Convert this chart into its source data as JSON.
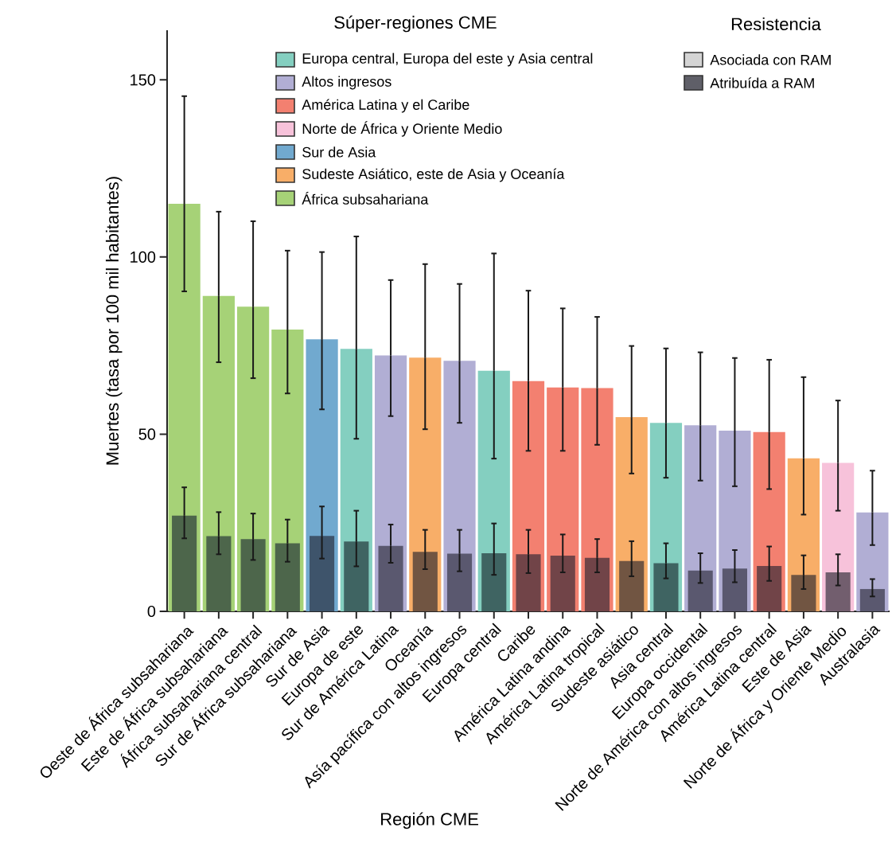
{
  "chart_data": {
    "type": "bar",
    "xlabel": "Región CME",
    "ylabel": "Muertes (tasa por 100 mil habitantes)",
    "legend_title": "Súper-regiones CME",
    "annotations": [
      "Resistencia"
    ],
    "categories": [
      "Oeste de África subsahariana",
      "Este de África subsahariana",
      "África subsahariana central",
      "Sur de África subsahariana",
      "Sur de Asia",
      "Europa de este",
      "Sur de América Latina",
      "Oceanía",
      "Asía pacífica con altos ingresos",
      "Europa central",
      "Caribe",
      "América Latina andina",
      "América Latina tropical",
      "Sudeste asiático",
      "Asia central",
      "Europa occidental",
      "Norte de América con altos ingresos",
      "América Latina central",
      "Este de Asia",
      "Norte de África y Oriente Medio",
      "Australasia"
    ],
    "ylim": [
      0,
      164
    ],
    "yticks": [
      0,
      50,
      100,
      150
    ],
    "legend": "top",
    "series": [
      {
        "name": "Europa central, Europa del este y Asia central",
        "color": "#84cfc0",
        "values": [
          null,
          null,
          null,
          null,
          null,
          74.1,
          null,
          null,
          null,
          67.9,
          null,
          null,
          null,
          null,
          53.2,
          null,
          null,
          null,
          null,
          null,
          null
        ],
        "errors": [
          null,
          null,
          null,
          null,
          null,
          [
            48.7,
            105.8
          ],
          null,
          null,
          null,
          [
            43.1,
            101.0
          ],
          null,
          null,
          null,
          null,
          [
            37.7,
            74.2
          ],
          null,
          null,
          null,
          null,
          null,
          null
        ]
      },
      {
        "name": "Altos ingresos",
        "color": "#b1aed4",
        "values": [
          null,
          null,
          null,
          null,
          null,
          null,
          72.2,
          null,
          70.7,
          null,
          null,
          null,
          null,
          null,
          null,
          52.5,
          51.0,
          null,
          null,
          null,
          27.9
        ],
        "errors": [
          null,
          null,
          null,
          null,
          null,
          null,
          [
            55.1,
            93.5
          ],
          null,
          [
            53.2,
            92.4
          ],
          null,
          null,
          null,
          null,
          null,
          null,
          [
            36.9,
            73.1
          ],
          [
            35.3,
            71.5
          ],
          null,
          null,
          null,
          [
            18.7,
            39.7
          ]
        ]
      },
      {
        "name": "América Latina y el Caribe",
        "color": "#f38070",
        "values": [
          null,
          null,
          null,
          null,
          null,
          null,
          null,
          null,
          null,
          null,
          65.0,
          63.2,
          63.0,
          null,
          null,
          null,
          null,
          50.6,
          null,
          null,
          null
        ],
        "errors": [
          null,
          null,
          null,
          null,
          null,
          null,
          null,
          null,
          null,
          null,
          [
            45.3,
            90.5
          ],
          [
            45.3,
            85.5
          ],
          [
            47.0,
            83.1
          ],
          null,
          null,
          null,
          null,
          [
            34.5,
            71.0
          ],
          null,
          null,
          null
        ]
      },
      {
        "name": "Norte de África y Oriente Medio",
        "color": "#f7c2da",
        "values": [
          null,
          null,
          null,
          null,
          null,
          null,
          null,
          null,
          null,
          null,
          null,
          null,
          null,
          null,
          null,
          null,
          null,
          null,
          null,
          41.9,
          null
        ],
        "errors": [
          null,
          null,
          null,
          null,
          null,
          null,
          null,
          null,
          null,
          null,
          null,
          null,
          null,
          null,
          null,
          null,
          null,
          null,
          null,
          [
            28.4,
            59.5
          ],
          null
        ]
      },
      {
        "name": "Sur de Asia",
        "color": "#71a9cf",
        "values": [
          null,
          null,
          null,
          null,
          76.8,
          null,
          null,
          null,
          null,
          null,
          null,
          null,
          null,
          null,
          null,
          null,
          null,
          null,
          null,
          null,
          null
        ],
        "errors": [
          null,
          null,
          null,
          null,
          [
            57.0,
            101.4
          ],
          null,
          null,
          null,
          null,
          null,
          null,
          null,
          null,
          null,
          null,
          null,
          null,
          null,
          null,
          null,
          null
        ]
      },
      {
        "name": "Sudeste Asiático, este de Asia y Oceanía",
        "color": "#f8ae68",
        "values": [
          null,
          null,
          null,
          null,
          null,
          null,
          null,
          71.6,
          null,
          null,
          null,
          null,
          null,
          54.8,
          null,
          null,
          null,
          null,
          43.2,
          null,
          null
        ],
        "errors": [
          null,
          null,
          null,
          null,
          null,
          null,
          null,
          [
            51.4,
            98.0
          ],
          null,
          null,
          null,
          null,
          null,
          [
            38.9,
            74.9
          ],
          null,
          null,
          null,
          null,
          [
            27.3,
            66.1
          ],
          null,
          null
        ]
      },
      {
        "name": "África subsahariana",
        "color": "#a6d277",
        "values": [
          115.0,
          89.0,
          86.0,
          79.5,
          null,
          null,
          null,
          null,
          null,
          null,
          null,
          null,
          null,
          null,
          null,
          null,
          null,
          null,
          null,
          null,
          null
        ],
        "errors": [
          [
            90.3,
            145.4
          ],
          [
            70.3,
            112.8
          ],
          [
            65.8,
            110.1
          ],
          [
            61.5,
            101.8
          ],
          null,
          null,
          null,
          null,
          null,
          null,
          null,
          null,
          null,
          null,
          null,
          null,
          null,
          null,
          null,
          null,
          null
        ]
      },
      {
        "name": "Asociada con RAM",
        "color": "#d4d4d4",
        "values": [
          null,
          null,
          null,
          null,
          null,
          null,
          null,
          null,
          null,
          null,
          null,
          null,
          null,
          null,
          null,
          null,
          null,
          null,
          null,
          null,
          null
        ]
      },
      {
        "name": "Atribuída a RAM",
        "color": "#5f5f68",
        "colors": [
          "#4d664b",
          "#4d664b",
          "#4d664b",
          "#4d664b",
          "#3e546b",
          "#3f6462",
          "#5a586f",
          "#715542",
          "#5a586f",
          "#3f6462",
          "#714448",
          "#714448",
          "#714448",
          "#715542",
          "#3f6462",
          "#5a586f",
          "#5a586f",
          "#714448",
          "#715542",
          "#725e6e",
          "#5a586f"
        ],
        "values": [
          27.0,
          21.2,
          20.4,
          19.2,
          21.3,
          19.7,
          18.5,
          16.8,
          16.3,
          16.4,
          16.1,
          15.7,
          15.1,
          14.2,
          13.6,
          11.5,
          12.1,
          12.8,
          10.3,
          11.0,
          6.3
        ],
        "errors": [
          [
            20.6,
            35.0
          ],
          [
            16.1,
            28.0
          ],
          [
            14.5,
            27.6
          ],
          [
            14.0,
            25.9
          ],
          [
            14.9,
            29.6
          ],
          [
            12.7,
            28.4
          ],
          [
            13.7,
            24.5
          ],
          [
            11.9,
            23.0
          ],
          [
            11.3,
            23.0
          ],
          [
            10.3,
            24.8
          ],
          [
            10.8,
            23.0
          ],
          [
            11.0,
            21.7
          ],
          [
            11.0,
            20.4
          ],
          [
            9.9,
            19.8
          ],
          [
            9.3,
            19.2
          ],
          [
            8.0,
            16.4
          ],
          [
            8.2,
            17.3
          ],
          [
            8.6,
            18.3
          ],
          [
            6.3,
            15.8
          ],
          [
            7.3,
            16.1
          ],
          [
            4.2,
            9.1
          ]
        ]
      }
    ]
  }
}
